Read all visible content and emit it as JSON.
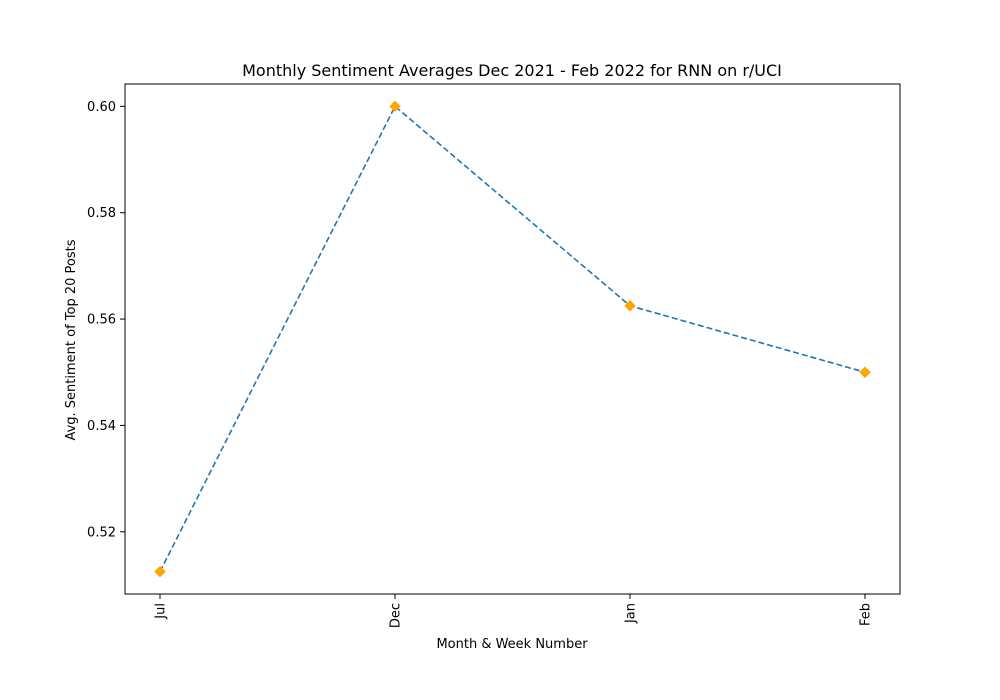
{
  "chart_data": {
    "type": "line",
    "title": "Monthly Sentiment Averages Dec 2021 - Feb 2022 for RNN on r/UCI",
    "xlabel": "Month & Week Number",
    "ylabel": "Avg. Sentiment of Top 20 Posts",
    "categories": [
      "Jul",
      "Dec",
      "Jan",
      "Feb"
    ],
    "series": [
      {
        "values": [
          0.5125,
          0.6,
          0.5625,
          0.55
        ],
        "line_color": "#1f77b4",
        "line_style": "dashed",
        "marker": "diamond",
        "marker_color": "#ffa500"
      }
    ],
    "ylim": [
      0.5083,
      0.6042
    ],
    "yticks": [
      0.52,
      0.54,
      0.56,
      0.58,
      0.6
    ],
    "ytick_labels": [
      "0.52",
      "0.54",
      "0.56",
      "0.58",
      "0.60"
    ],
    "grid": false,
    "legend": "none"
  }
}
